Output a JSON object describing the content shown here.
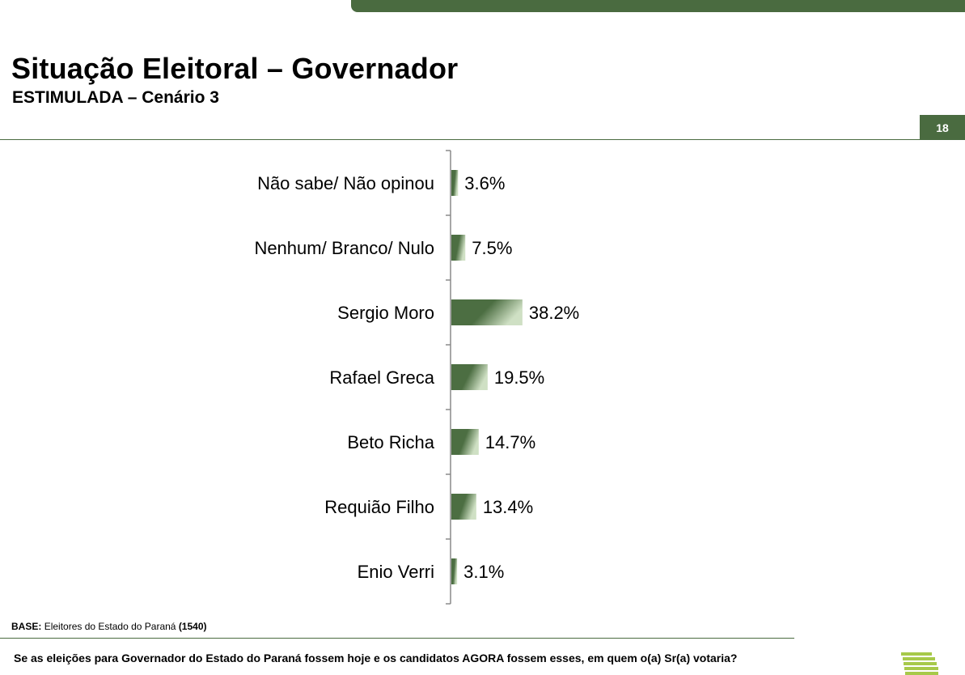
{
  "header": {
    "title": "Situação Eleitoral – Governador",
    "subtitle": "ESTIMULADA – Cenário 3",
    "page_number": "18"
  },
  "footer": {
    "base_label": "BASE:",
    "base_text": "Eleitores do Estado do Paraná",
    "base_count": "(1540)",
    "question": "Se as eleições para Governador do Estado do Paraná fossem hoje e os candidatos AGORA fossem esses, em quem o(a) Sr(a) votaria?"
  },
  "colors": {
    "accent": "#4a6b40",
    "bar_dark": "#4c6e42",
    "bar_light": "#cfe0c4",
    "logo_green": "#a7c94a"
  },
  "icons": {
    "logo": "green-stripes-logo"
  },
  "chart_data": {
    "type": "bar",
    "orientation": "horizontal",
    "categories": [
      "Não sabe/ Não opinou",
      "Nenhum/ Branco/ Nulo",
      "Sergio Moro",
      "Rafael Greca",
      "Beto Richa",
      "Requião Filho",
      "Enio Verri"
    ],
    "values": [
      3.6,
      7.5,
      38.2,
      19.5,
      14.7,
      13.4,
      3.1
    ],
    "value_labels": [
      "3.6%",
      "7.5%",
      "38.2%",
      "19.5%",
      "14.7%",
      "13.4%",
      "3.1%"
    ],
    "unit": "%",
    "xlim": [
      0,
      100
    ],
    "grid": false,
    "legend": "none"
  }
}
